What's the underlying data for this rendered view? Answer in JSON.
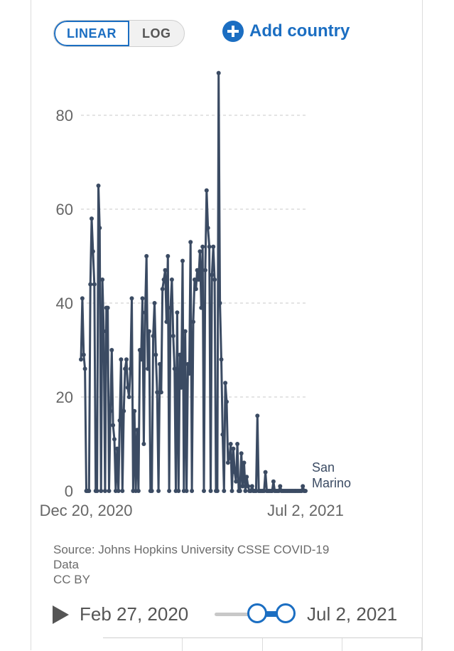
{
  "controls": {
    "linear_label": "LINEAR",
    "log_label": "LOG",
    "add_country_label": "Add country"
  },
  "chart_data": {
    "type": "line",
    "series": [
      {
        "name": "San Marino",
        "color": "#3b4b63",
        "values": [
          28,
          41,
          29,
          26,
          0,
          0,
          0,
          44,
          58,
          51,
          44,
          0,
          0,
          65,
          56,
          0,
          45,
          34,
          0,
          39,
          39,
          0,
          17,
          30,
          14,
          11,
          0,
          9,
          0,
          15,
          28,
          0,
          17,
          26,
          28,
          22,
          20,
          26,
          41,
          0,
          17,
          0,
          13,
          0,
          30,
          28,
          41,
          10,
          38,
          50,
          26,
          34,
          0,
          0,
          33,
          40,
          29,
          21,
          0,
          27,
          21,
          43,
          45,
          47,
          36,
          50,
          0,
          39,
          45,
          33,
          26,
          0,
          38,
          0,
          29,
          22,
          49,
          0,
          34,
          0,
          27,
          25,
          53,
          0,
          36,
          45,
          43,
          47,
          45,
          51,
          39,
          52,
          0,
          47,
          64,
          56,
          52,
          0,
          46,
          52,
          45,
          0,
          0,
          89,
          40,
          28,
          12,
          0,
          23,
          19,
          6,
          7,
          10,
          0,
          9,
          4,
          2,
          10,
          0,
          0,
          8,
          1,
          6,
          0,
          3,
          1,
          0,
          0,
          1,
          0,
          0,
          0,
          16,
          0,
          0,
          0,
          0,
          0,
          4,
          0,
          0,
          0,
          0,
          0,
          2,
          0,
          0,
          0,
          0,
          1,
          0,
          0,
          0,
          0,
          0,
          0,
          0,
          0,
          0,
          0,
          0,
          0,
          0,
          0,
          0,
          0,
          1,
          0,
          0
        ]
      }
    ],
    "x_start": "Dec 20, 2020",
    "x_end": "Jul 2, 2021",
    "xticks": [
      "Dec 20, 2020",
      "Jul 2, 2021"
    ],
    "yticks": [
      0,
      20,
      40,
      60,
      80
    ],
    "ylim": [
      0,
      90
    ],
    "grid": true,
    "series_label_placement": "end-of-line"
  },
  "source": {
    "line1": "Source: Johns Hopkins University CSSE COVID-19",
    "line2": "Data",
    "line3": "CC BY"
  },
  "timeline": {
    "start_label": "Feb 27, 2020",
    "end_label": "Jul 2, 2021"
  }
}
